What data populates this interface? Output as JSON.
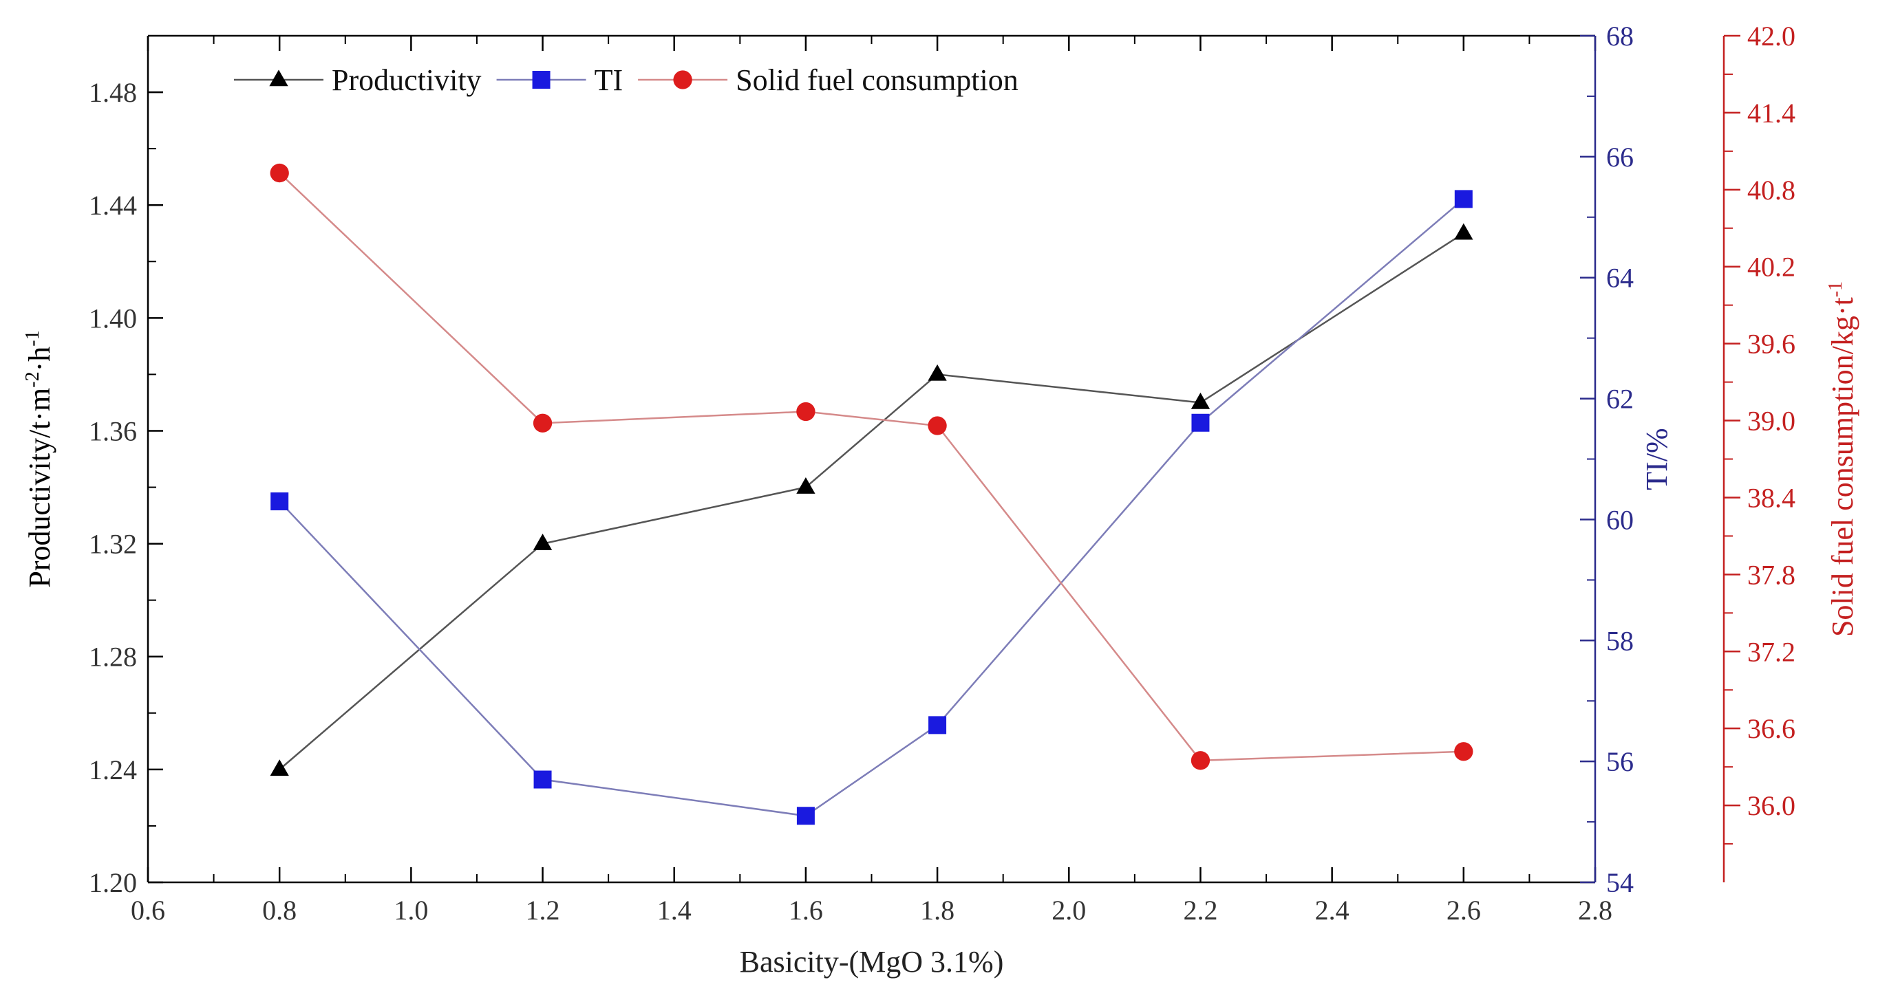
{
  "chart_data": {
    "type": "line",
    "title": "",
    "xlabel": "Basicity-(MgO 3.1%)",
    "xlim": [
      0.6,
      2.8
    ],
    "x_ticks": [
      "0.6",
      "0.8",
      "1.0",
      "1.2",
      "1.4",
      "1.6",
      "1.8",
      "2.0",
      "2.2",
      "2.4",
      "2.6",
      "2.8"
    ],
    "legend_position": "top-left",
    "axes": [
      {
        "id": "left",
        "label": "Productivity/t·m",
        "label_sup1": "-2",
        "label_mid": "·h",
        "label_sup2": "-1",
        "ylim": [
          1.2,
          1.5
        ],
        "ticks": [
          "1.20",
          "1.24",
          "1.28",
          "1.32",
          "1.36",
          "1.40",
          "1.44",
          "1.48"
        ],
        "color": "#000000"
      },
      {
        "id": "right1",
        "label": "TI/%",
        "ylim": [
          54,
          68
        ],
        "ticks": [
          "54",
          "56",
          "58",
          "60",
          "62",
          "64",
          "66",
          "68"
        ],
        "color": "#2b2b8c"
      },
      {
        "id": "right2",
        "label": "Solid fuel consumption/kg·t",
        "label_sup": "-1",
        "ylim": [
          35.4,
          42.0
        ],
        "ticks": [
          "36.0",
          "36.6",
          "37.2",
          "37.8",
          "38.4",
          "39.0",
          "39.6",
          "40.2",
          "40.8",
          "41.4",
          "42.0"
        ],
        "color": "#c42020"
      }
    ],
    "series": [
      {
        "name": "Productivity",
        "axis": "left",
        "marker": "triangle",
        "marker_color": "#000000",
        "line_color": "#555555",
        "x": [
          0.8,
          1.2,
          1.6,
          1.8,
          2.2,
          2.6
        ],
        "values": [
          1.24,
          1.32,
          1.34,
          1.38,
          1.37,
          1.43
        ]
      },
      {
        "name": "TI",
        "axis": "right1",
        "marker": "square",
        "marker_color": "#1a1adf",
        "line_color": "#7d7db8",
        "x": [
          0.8,
          1.2,
          1.6,
          1.8,
          2.2,
          2.6
        ],
        "values": [
          60.3,
          55.7,
          55.1,
          56.6,
          61.6,
          65.3
        ]
      },
      {
        "name": "Solid fuel consumption",
        "axis": "right2",
        "marker": "circle",
        "marker_color": "#dd1c1c",
        "line_color": "#d58a8a",
        "x": [
          0.8,
          1.2,
          1.6,
          1.8,
          2.2,
          2.6
        ],
        "values": [
          40.93,
          38.98,
          39.07,
          38.96,
          36.35,
          36.42
        ]
      }
    ]
  }
}
